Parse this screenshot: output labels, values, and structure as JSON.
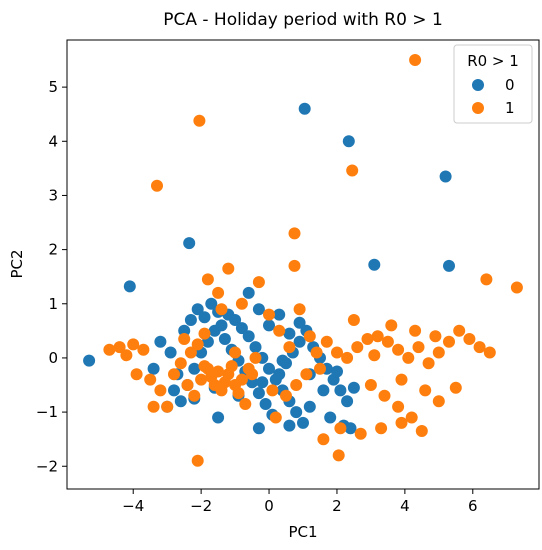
{
  "chart_data": {
    "type": "scatter",
    "title": "PCA - Holiday period with R0 > 1",
    "xlabel": "PC1",
    "ylabel": "PC2",
    "xlim": [
      -5.95,
      7.95
    ],
    "ylim": [
      -2.42,
      5.87
    ],
    "xticks": [
      -4,
      -2,
      0,
      2,
      4,
      6
    ],
    "yticks": [
      -2,
      -1,
      0,
      1,
      2,
      3,
      4,
      5
    ],
    "xtick_labels": [
      "−4",
      "−2",
      "0",
      "2",
      "4",
      "6"
    ],
    "ytick_labels": [
      "−2",
      "−1",
      "0",
      "1",
      "2",
      "3",
      "4",
      "5"
    ],
    "grid": false,
    "legend": {
      "title": "R0 > 1",
      "placement": "top-right",
      "entries": [
        "0",
        "1"
      ]
    },
    "series": [
      {
        "name": "0",
        "color": "#1f77b4",
        "points": [
          [
            -5.3,
            -0.05
          ],
          [
            -4.1,
            1.32
          ],
          [
            -2.35,
            2.12
          ],
          [
            1.05,
            4.6
          ],
          [
            2.35,
            4.0
          ],
          [
            5.2,
            3.35
          ],
          [
            3.1,
            1.72
          ],
          [
            5.3,
            1.7
          ],
          [
            -3.0,
            -0.9
          ],
          [
            -2.8,
            -0.6
          ],
          [
            -2.6,
            -0.8
          ],
          [
            -2.4,
            -0.5
          ],
          [
            -2.2,
            -0.2
          ],
          [
            -2.0,
            0.1
          ],
          [
            -1.8,
            0.3
          ],
          [
            -1.6,
            0.5
          ],
          [
            -1.4,
            0.6
          ],
          [
            -1.2,
            0.8
          ],
          [
            -1.0,
            0.7
          ],
          [
            -0.8,
            0.55
          ],
          [
            -0.6,
            0.4
          ],
          [
            -0.4,
            0.2
          ],
          [
            -0.2,
            0.0
          ],
          [
            0.0,
            -0.2
          ],
          [
            0.2,
            -0.4
          ],
          [
            0.4,
            -0.6
          ],
          [
            0.6,
            -0.8
          ],
          [
            0.8,
            -1.0
          ],
          [
            1.0,
            -1.2
          ],
          [
            1.2,
            -0.9
          ],
          [
            -2.5,
            0.5
          ],
          [
            -2.3,
            0.7
          ],
          [
            -2.1,
            0.9
          ],
          [
            -1.9,
            0.75
          ],
          [
            -1.7,
            1.0
          ],
          [
            -1.5,
            0.85
          ],
          [
            -1.3,
            0.35
          ],
          [
            -1.1,
            0.15
          ],
          [
            -0.9,
            -0.05
          ],
          [
            -0.7,
            -0.25
          ],
          [
            -0.5,
            -0.45
          ],
          [
            -0.3,
            -0.65
          ],
          [
            -0.1,
            -0.85
          ],
          [
            0.1,
            -1.05
          ],
          [
            0.3,
            -0.3
          ],
          [
            0.5,
            -0.1
          ],
          [
            0.7,
            0.1
          ],
          [
            0.9,
            0.3
          ],
          [
            1.1,
            0.5
          ],
          [
            1.3,
            0.2
          ],
          [
            1.5,
            0.0
          ],
          [
            1.7,
            -0.2
          ],
          [
            1.9,
            -0.4
          ],
          [
            2.1,
            -0.6
          ],
          [
            2.3,
            -0.8
          ],
          [
            2.5,
            -0.55
          ],
          [
            -3.2,
            0.3
          ],
          [
            -3.4,
            -0.2
          ],
          [
            -2.9,
            0.1
          ],
          [
            -2.7,
            -0.3
          ],
          [
            -0.6,
            1.2
          ],
          [
            -0.3,
            0.9
          ],
          [
            0.0,
            0.6
          ],
          [
            0.3,
            0.8
          ],
          [
            0.6,
            0.45
          ],
          [
            0.9,
            0.65
          ],
          [
            1.2,
            -0.3
          ],
          [
            1.6,
            -0.6
          ],
          [
            2.0,
            -0.25
          ],
          [
            2.4,
            -1.3
          ],
          [
            -1.5,
            -1.1
          ],
          [
            -0.3,
            -1.3
          ],
          [
            0.6,
            -1.25
          ],
          [
            1.8,
            -1.1
          ],
          [
            2.2,
            -1.25
          ],
          [
            -2.2,
            -0.75
          ],
          [
            -1.6,
            -0.55
          ],
          [
            -0.9,
            -0.7
          ],
          [
            -0.2,
            -0.45
          ],
          [
            0.4,
            -0.05
          ]
        ]
      },
      {
        "name": "1",
        "color": "#ff7f0e",
        "points": [
          [
            4.3,
            5.5
          ],
          [
            -2.05,
            4.38
          ],
          [
            -3.3,
            3.18
          ],
          [
            2.45,
            3.46
          ],
          [
            0.75,
            2.3
          ],
          [
            0.75,
            1.7
          ],
          [
            -1.2,
            1.65
          ],
          [
            -1.8,
            1.45
          ],
          [
            -0.3,
            1.4
          ],
          [
            -1.5,
            1.2
          ],
          [
            6.4,
            1.45
          ],
          [
            7.3,
            1.3
          ],
          [
            -2.1,
            -1.9
          ],
          [
            2.05,
            -1.8
          ],
          [
            -4.4,
            0.2
          ],
          [
            -4.0,
            0.25
          ],
          [
            -3.7,
            0.15
          ],
          [
            -3.9,
            -0.3
          ],
          [
            -3.5,
            -0.4
          ],
          [
            -3.2,
            -0.6
          ],
          [
            -3.0,
            -0.9
          ],
          [
            -2.8,
            -0.3
          ],
          [
            -2.6,
            -0.1
          ],
          [
            -2.4,
            -0.5
          ],
          [
            -2.2,
            -0.7
          ],
          [
            -2.0,
            -0.4
          ],
          [
            -1.8,
            -0.2
          ],
          [
            -1.6,
            -0.5
          ],
          [
            -1.4,
            -0.6
          ],
          [
            -1.2,
            -0.3
          ],
          [
            -1.0,
            -0.5
          ],
          [
            -0.8,
            -0.4
          ],
          [
            -0.6,
            -0.2
          ],
          [
            -0.4,
            0.0
          ],
          [
            -1.9,
            -0.15
          ],
          [
            -1.7,
            -0.35
          ],
          [
            -1.5,
            -0.25
          ],
          [
            -1.3,
            -0.45
          ],
          [
            -1.1,
            -0.15
          ],
          [
            -0.9,
            -0.65
          ],
          [
            -0.7,
            -0.85
          ],
          [
            -2.3,
            0.1
          ],
          [
            -2.1,
            0.25
          ],
          [
            -1.9,
            0.45
          ],
          [
            0.2,
            -1.1
          ],
          [
            0.5,
            -0.7
          ],
          [
            0.8,
            -0.5
          ],
          [
            1.1,
            -0.3
          ],
          [
            1.4,
            0.1
          ],
          [
            1.7,
            0.3
          ],
          [
            2.0,
            0.1
          ],
          [
            2.3,
            0.0
          ],
          [
            2.6,
            0.2
          ],
          [
            2.9,
            0.35
          ],
          [
            3.2,
            0.4
          ],
          [
            3.5,
            0.3
          ],
          [
            3.8,
            0.15
          ],
          [
            4.1,
            0.0
          ],
          [
            4.4,
            0.2
          ],
          [
            4.7,
            -0.1
          ],
          [
            5.0,
            0.1
          ],
          [
            5.3,
            0.3
          ],
          [
            5.6,
            0.5
          ],
          [
            5.9,
            0.35
          ],
          [
            6.2,
            0.2
          ],
          [
            6.5,
            0.1
          ],
          [
            3.0,
            -0.5
          ],
          [
            3.4,
            -0.7
          ],
          [
            3.8,
            -0.9
          ],
          [
            4.2,
            -1.1
          ],
          [
            4.6,
            -0.6
          ],
          [
            5.0,
            -0.8
          ],
          [
            2.7,
            -1.4
          ],
          [
            3.3,
            -1.3
          ],
          [
            3.9,
            -1.2
          ],
          [
            4.5,
            -1.35
          ],
          [
            0.0,
            0.8
          ],
          [
            0.3,
            0.5
          ],
          [
            0.6,
            0.2
          ],
          [
            0.9,
            0.9
          ],
          [
            1.2,
            0.4
          ],
          [
            1.5,
            -0.2
          ],
          [
            2.5,
            0.7
          ],
          [
            3.6,
            0.6
          ],
          [
            4.3,
            0.5
          ],
          [
            4.9,
            0.4
          ],
          [
            -4.2,
            0.05
          ],
          [
            -4.7,
            0.15
          ],
          [
            -3.4,
            -0.9
          ],
          [
            -2.5,
            0.35
          ],
          [
            -1.0,
            0.1
          ],
          [
            -0.5,
            -0.3
          ],
          [
            0.1,
            -0.6
          ],
          [
            1.6,
            -1.5
          ],
          [
            2.1,
            -1.3
          ],
          [
            -1.4,
            0.9
          ],
          [
            -0.8,
            1.0
          ],
          [
            3.1,
            0.05
          ],
          [
            3.9,
            -0.4
          ],
          [
            5.5,
            -0.55
          ]
        ]
      }
    ]
  }
}
